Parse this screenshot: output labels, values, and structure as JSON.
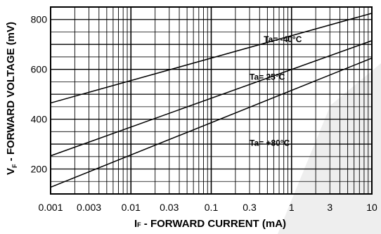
{
  "chart_data": {
    "type": "line",
    "x_scale": "log",
    "xlim": [
      0.001,
      10
    ],
    "ylim": [
      100,
      850
    ],
    "grid": true,
    "xlabel": {
      "main": "I",
      "sub": "F",
      "rest": " - FORWARD CURRENT  (mA)"
    },
    "ylabel": {
      "main": "V",
      "sub": "F",
      "rest": " - FORWARD VOLTAGE (mV)"
    },
    "x_ticks": [
      {
        "value": 0.001,
        "label": "0.001"
      },
      {
        "value": 0.003,
        "label": "0.003"
      },
      {
        "value": 0.01,
        "label": "0.01"
      },
      {
        "value": 0.03,
        "label": "0.03"
      },
      {
        "value": 0.1,
        "label": "0.1"
      },
      {
        "value": 0.3,
        "label": "0.3"
      },
      {
        "value": 1,
        "label": "1"
      },
      {
        "value": 3,
        "label": "3"
      },
      {
        "value": 10,
        "label": "10"
      }
    ],
    "y_ticks": [
      {
        "value": 200,
        "label": "200"
      },
      {
        "value": 400,
        "label": "400"
      },
      {
        "value": 600,
        "label": "600"
      },
      {
        "value": 800,
        "label": "800"
      }
    ],
    "series": [
      {
        "name": "Ta= -40°C",
        "x": [
          0.001,
          10
        ],
        "y": [
          465,
          825
        ]
      },
      {
        "name": "Ta= 25°C",
        "x": [
          0.001,
          10
        ],
        "y": [
          253,
          715
        ]
      },
      {
        "name": "Ta= +80°C",
        "x": [
          0.001,
          10
        ],
        "y": [
          127,
          645
        ]
      }
    ],
    "annotations": [
      {
        "text": "Ta= -40°C",
        "x": 0.45,
        "y": 720
      },
      {
        "text": "Ta= 25°C",
        "x": 0.3,
        "y": 570
      },
      {
        "text": "Ta= +80°C",
        "x": 0.3,
        "y": 305
      }
    ]
  }
}
